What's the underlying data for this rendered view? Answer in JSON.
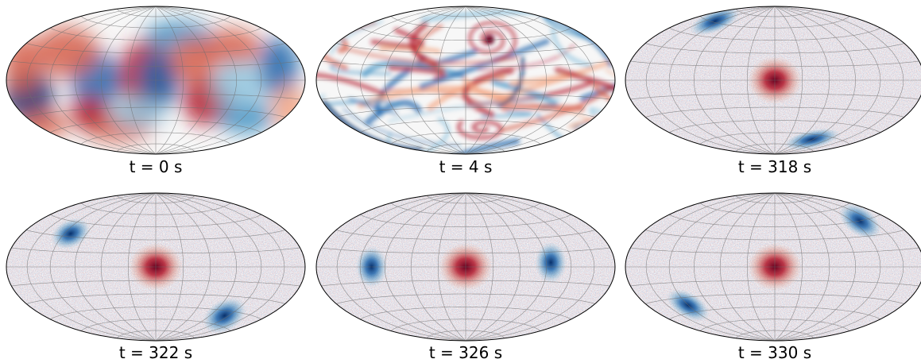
{
  "figure": {
    "panels": [
      {
        "label": "t = 0 s",
        "field": "random-smooth"
      },
      {
        "label": "t = 4 s",
        "field": "turbulent-swirls"
      },
      {
        "label": "t = 318 s",
        "field": "noise-with-vortices"
      },
      {
        "label": "t = 322 s",
        "field": "noise-with-vortices"
      },
      {
        "label": "t = 326 s",
        "field": "noise-with-vortices"
      },
      {
        "label": "t = 330 s",
        "field": "noise-with-vortices"
      }
    ],
    "colormap": {
      "negative": "#08306b",
      "mid": "#f7f7f7",
      "positive": "#67001f"
    },
    "projection": "hammer-aitoff",
    "graticule": "on"
  }
}
